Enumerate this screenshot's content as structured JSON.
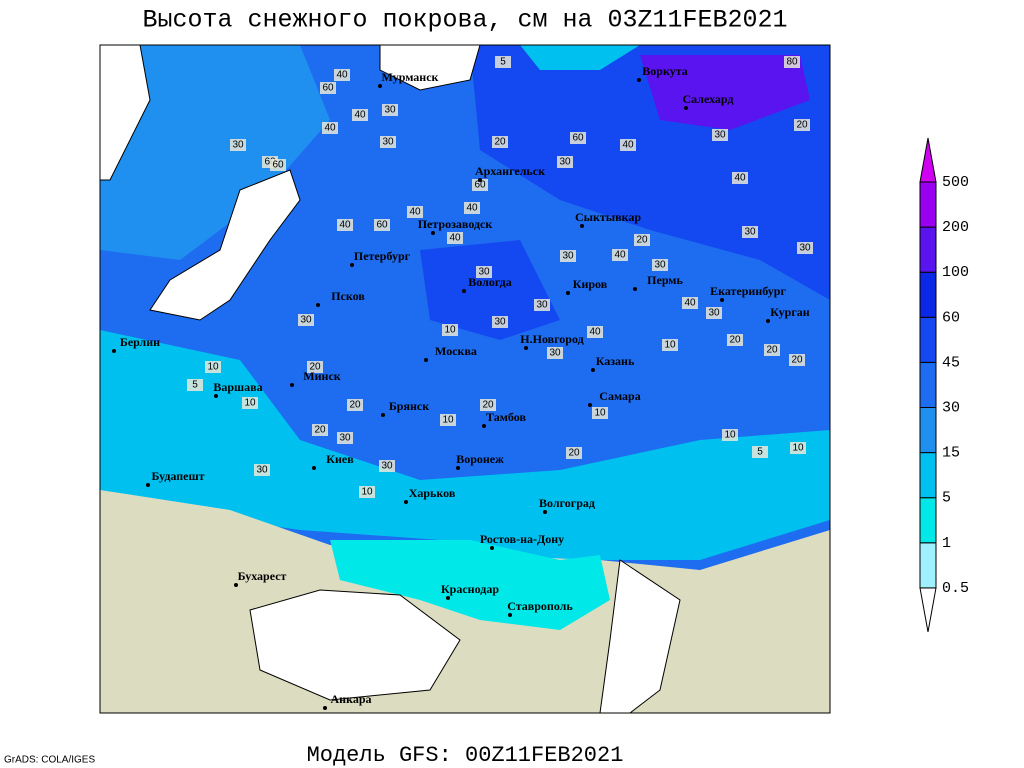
{
  "title": "Высота снежного покрова, см на 03Z11FEB2021",
  "footer": "Модель GFS: 00Z11FEB2021",
  "credit": "GrADS: COLA/IGES",
  "legend": {
    "levels": [
      0.5,
      1,
      5,
      15,
      30,
      45,
      60,
      100,
      200,
      500
    ],
    "colors": [
      "#ffffff",
      "#a0f0ff",
      "#00e8e8",
      "#00c0f0",
      "#2090f0",
      "#1e6cf0",
      "#1448f0",
      "#0a28e6",
      "#5a14f0",
      "#9a00f0",
      "#d000f0"
    ]
  },
  "cities": [
    "Мурманск",
    "Воркута",
    "Салехард",
    "Архангельск",
    "Сыктывкар",
    "Петрозаводск",
    "Петербург",
    "Вологда",
    "Киров",
    "Пермь",
    "Екатеринбург",
    "Курган",
    "Псков",
    "Н.Новгород",
    "Казань",
    "Москва",
    "Берлин",
    "Варшава",
    "Минск",
    "Брянск",
    "Тамбов",
    "Самара",
    "Киев",
    "Воронеж",
    "Будапешт",
    "Харьков",
    "Волгоград",
    "Ростов-на-Дону",
    "Бухарест",
    "Краснодар",
    "Ставрополь",
    "Анкара"
  ],
  "contour_labels": [
    5,
    80,
    40,
    60,
    40,
    30,
    40,
    60,
    30,
    20,
    30,
    40,
    30,
    30,
    20,
    60,
    60,
    60,
    40,
    40,
    40,
    40,
    60,
    40,
    20,
    30,
    30,
    30,
    40,
    30,
    30,
    40,
    30,
    30,
    30,
    30,
    40,
    20,
    10,
    20,
    30,
    20,
    10,
    20,
    10,
    5,
    10,
    20,
    20,
    10,
    10,
    20,
    30,
    30,
    30,
    20,
    10,
    5,
    10,
    10
  ]
}
